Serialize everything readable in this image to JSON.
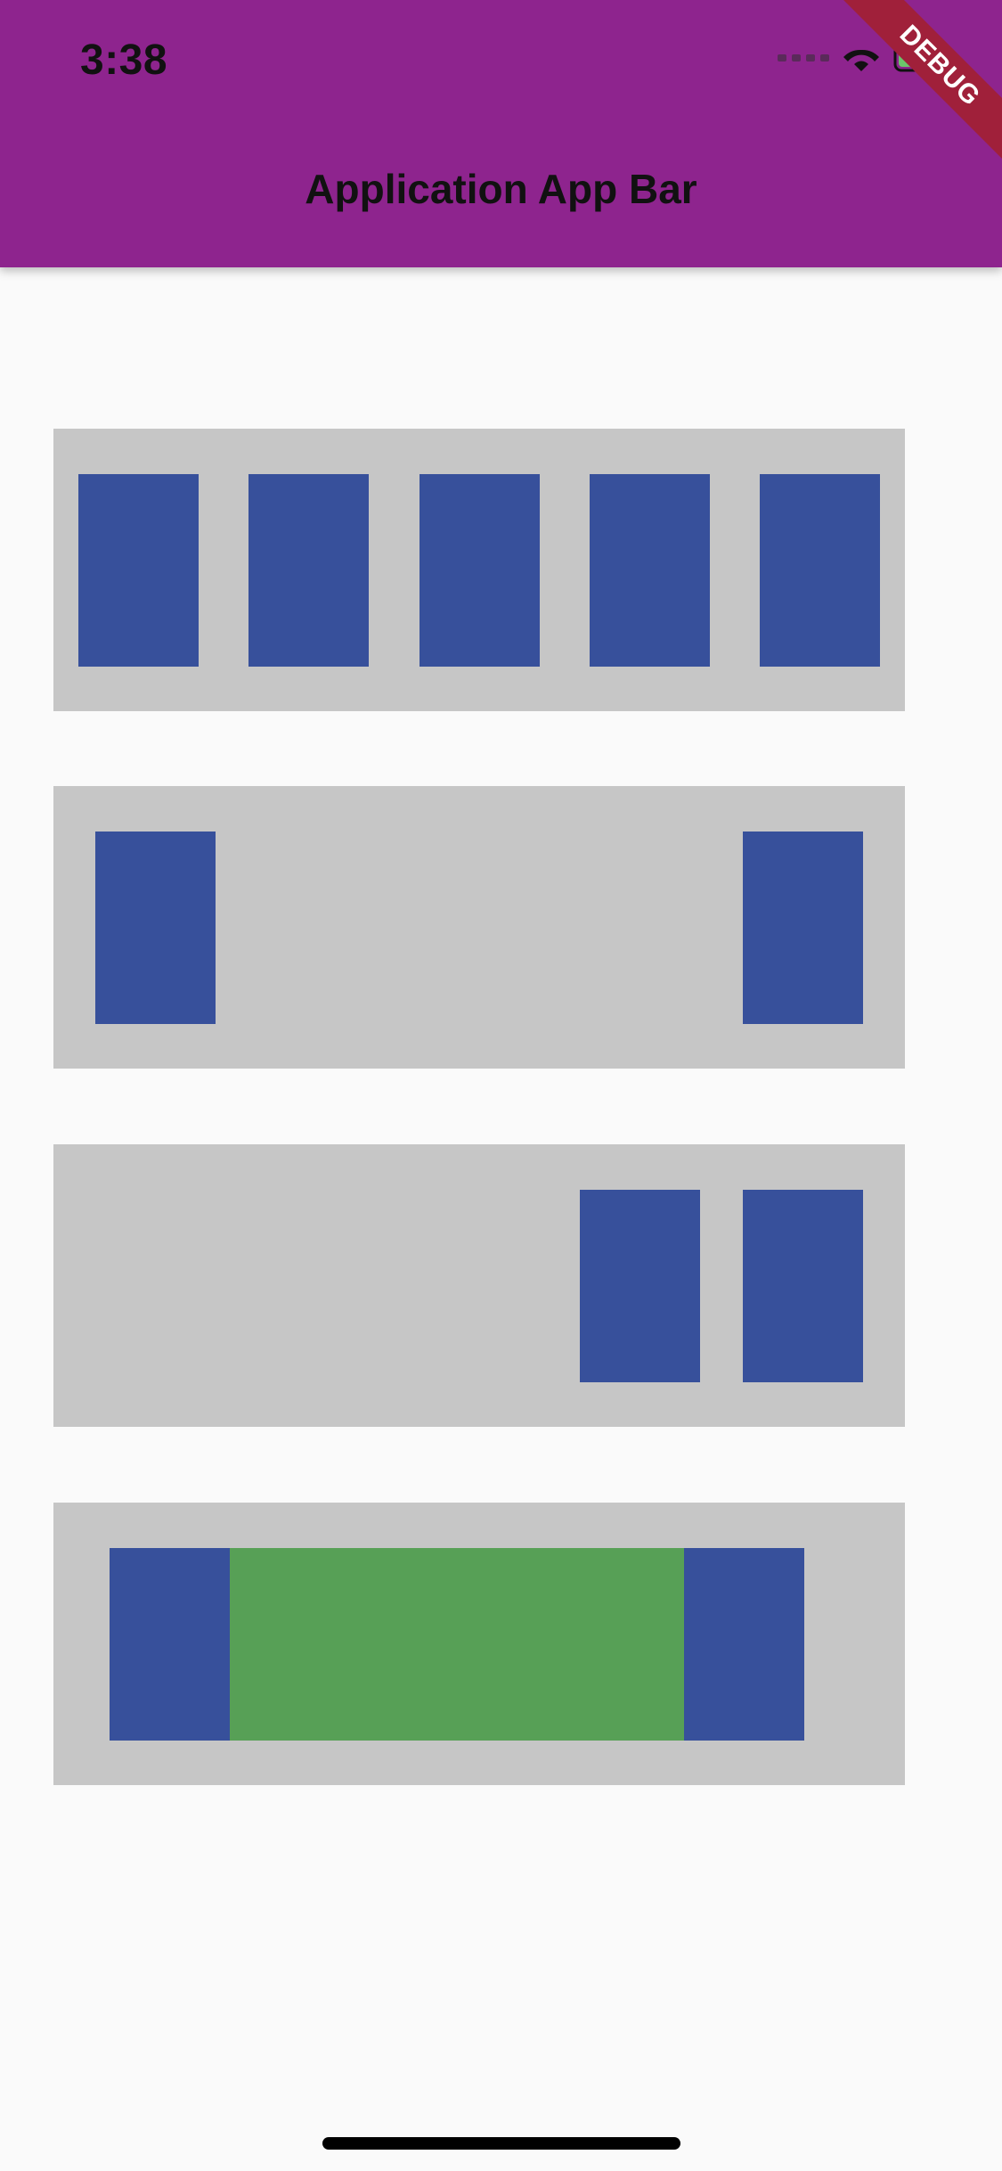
{
  "status_bar": {
    "time": "3:38",
    "icons": [
      "cellular-signal-icon",
      "wifi-icon",
      "battery-charging-icon"
    ]
  },
  "app_bar": {
    "title": "Application App Bar",
    "background_color": "#8E248E"
  },
  "debug_banner": {
    "label": "DEBUG",
    "color": "#A0203A"
  },
  "colors": {
    "page_background": "#FAFAFA",
    "panel": "#C6C6C6",
    "blue_box": "#37509B",
    "green_box": "#57A056"
  }
}
